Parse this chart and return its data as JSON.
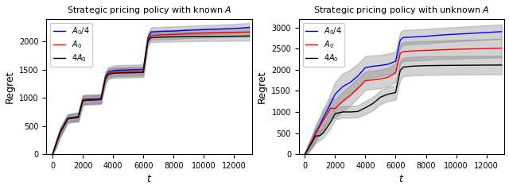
{
  "title_left": "Strategic pricing policy with known $A$",
  "title_right": "Strategic pricing policy with unknown $A$",
  "xlabel": "$t$",
  "ylabel": "Regret",
  "legend_labels": [
    "$A_0/4$",
    "$A_0$",
    "$4A_0$"
  ],
  "line_colors": [
    "blue",
    "red",
    "black"
  ],
  "shade_color": "gray",
  "shade_alpha": 0.35,
  "left": {
    "t": [
      0,
      200,
      500,
      700,
      1000,
      1200,
      1500,
      1700,
      2000,
      2200,
      2500,
      3000,
      3200,
      3500,
      3700,
      4000,
      4200,
      5000,
      5500,
      6000,
      6300,
      6500,
      7000,
      7200,
      8000,
      9000,
      10000,
      11000,
      12000,
      13000
    ],
    "blue_mean": [
      0,
      160,
      390,
      490,
      640,
      650,
      660,
      665,
      970,
      975,
      980,
      985,
      990,
      1380,
      1460,
      1480,
      1490,
      1495,
      1500,
      1505,
      2060,
      2170,
      2175,
      2180,
      2185,
      2200,
      2210,
      2220,
      2230,
      2250
    ],
    "blue_lo": [
      0,
      100,
      310,
      410,
      570,
      580,
      585,
      590,
      890,
      895,
      900,
      905,
      910,
      1290,
      1370,
      1390,
      1400,
      1405,
      1410,
      1415,
      1980,
      2090,
      2095,
      2100,
      2105,
      2120,
      2130,
      2140,
      2150,
      2170
    ],
    "blue_hi": [
      0,
      220,
      470,
      570,
      710,
      720,
      735,
      740,
      1050,
      1055,
      1060,
      1065,
      1070,
      1470,
      1550,
      1570,
      1580,
      1585,
      1590,
      1595,
      2140,
      2250,
      2255,
      2260,
      2265,
      2280,
      2290,
      2300,
      2310,
      2330
    ],
    "red_mean": [
      0,
      158,
      385,
      483,
      632,
      642,
      652,
      657,
      960,
      965,
      970,
      975,
      980,
      1360,
      1440,
      1455,
      1462,
      1467,
      1470,
      1475,
      2025,
      2110,
      2115,
      2120,
      2125,
      2140,
      2150,
      2158,
      2163,
      2168
    ],
    "red_lo": [
      0,
      98,
      305,
      403,
      562,
      572,
      577,
      582,
      880,
      885,
      890,
      895,
      900,
      1275,
      1355,
      1370,
      1377,
      1382,
      1385,
      1390,
      1942,
      2028,
      2033,
      2038,
      2043,
      2058,
      2068,
      2076,
      2081,
      2086
    ],
    "red_hi": [
      0,
      218,
      465,
      563,
      702,
      712,
      727,
      732,
      1040,
      1045,
      1050,
      1055,
      1060,
      1445,
      1525,
      1540,
      1547,
      1552,
      1555,
      1560,
      2108,
      2192,
      2197,
      2202,
      2207,
      2222,
      2232,
      2240,
      2245,
      2250
    ],
    "black_mean": [
      0,
      155,
      380,
      478,
      625,
      635,
      645,
      650,
      950,
      955,
      960,
      965,
      970,
      1340,
      1418,
      1434,
      1440,
      1444,
      1447,
      1452,
      2002,
      2070,
      2074,
      2078,
      2082,
      2086,
      2090,
      2092,
      2094,
      2098
    ],
    "black_lo": [
      0,
      95,
      300,
      398,
      555,
      565,
      570,
      575,
      870,
      875,
      880,
      885,
      890,
      1253,
      1333,
      1349,
      1355,
      1359,
      1362,
      1367,
      1920,
      1988,
      1992,
      1996,
      2000,
      2004,
      2008,
      2010,
      2012,
      2016
    ],
    "black_hi": [
      0,
      215,
      460,
      558,
      695,
      705,
      720,
      725,
      1030,
      1035,
      1040,
      1045,
      1050,
      1427,
      1503,
      1519,
      1525,
      1529,
      1532,
      1537,
      2084,
      2152,
      2156,
      2160,
      2164,
      2168,
      2172,
      2174,
      2176,
      2180
    ]
  },
  "right": {
    "t": [
      0,
      200,
      500,
      700,
      1000,
      1200,
      1500,
      1700,
      2000,
      2500,
      3000,
      3500,
      4000,
      4500,
      5000,
      5500,
      6000,
      6300,
      6500,
      7000,
      7200,
      8000,
      9000,
      10000,
      11000,
      12000,
      13000
    ],
    "blue_mean": [
      0,
      130,
      330,
      500,
      700,
      850,
      1050,
      1200,
      1420,
      1600,
      1700,
      1850,
      2050,
      2080,
      2100,
      2130,
      2200,
      2700,
      2760,
      2770,
      2775,
      2790,
      2820,
      2840,
      2860,
      2880,
      2900
    ],
    "blue_lo": [
      0,
      40,
      190,
      330,
      500,
      630,
      830,
      950,
      1130,
      1290,
      1400,
      1560,
      1780,
      1820,
      1850,
      1880,
      1970,
      2520,
      2580,
      2595,
      2600,
      2615,
      2650,
      2670,
      2690,
      2710,
      2730
    ],
    "blue_hi": [
      0,
      220,
      470,
      670,
      900,
      1070,
      1270,
      1450,
      1710,
      1910,
      2000,
      2140,
      2320,
      2340,
      2350,
      2380,
      2430,
      2880,
      2940,
      2945,
      2950,
      2965,
      2990,
      3010,
      3030,
      3050,
      3070
    ],
    "red_mean": [
      0,
      125,
      320,
      480,
      660,
      790,
      960,
      1090,
      1080,
      1250,
      1390,
      1560,
      1740,
      1760,
      1780,
      1820,
      1930,
      2380,
      2430,
      2440,
      2445,
      2455,
      2470,
      2483,
      2492,
      2500,
      2510
    ],
    "red_lo": [
      0,
      35,
      180,
      310,
      460,
      570,
      740,
      850,
      860,
      1020,
      1150,
      1330,
      1520,
      1545,
      1560,
      1600,
      1710,
      2150,
      2205,
      2215,
      2220,
      2230,
      2250,
      2263,
      2272,
      2280,
      2290
    ],
    "red_hi": [
      0,
      215,
      460,
      650,
      860,
      1010,
      1180,
      1330,
      1300,
      1480,
      1630,
      1790,
      1960,
      1975,
      2000,
      2040,
      2150,
      2610,
      2655,
      2665,
      2670,
      2680,
      2690,
      2703,
      2712,
      2720,
      2730
    ],
    "black_mean": [
      0,
      120,
      300,
      430,
      440,
      500,
      650,
      760,
      960,
      1000,
      1000,
      1010,
      1100,
      1200,
      1350,
      1420,
      1460,
      1980,
      2060,
      2080,
      2085,
      2095,
      2100,
      2103,
      2106,
      2108,
      2110
    ],
    "black_lo": [
      0,
      30,
      160,
      260,
      330,
      380,
      520,
      620,
      820,
      860,
      860,
      870,
      945,
      1040,
      1185,
      1255,
      1290,
      1760,
      1840,
      1860,
      1865,
      1875,
      1880,
      1883,
      1886,
      1888,
      1890
    ],
    "black_hi": [
      0,
      210,
      440,
      600,
      550,
      620,
      780,
      900,
      1100,
      1140,
      1140,
      1150,
      1255,
      1360,
      1515,
      1585,
      1630,
      2200,
      2280,
      2300,
      2305,
      2315,
      2320,
      2323,
      2326,
      2328,
      2330
    ]
  },
  "left_ylim": [
    0,
    2400
  ],
  "right_ylim": [
    0,
    3200
  ],
  "xlim": [
    -400,
    13200
  ],
  "xticks": [
    0,
    2000,
    4000,
    6000,
    8000,
    10000,
    12000
  ],
  "left_yticks": [
    0,
    500,
    1000,
    1500,
    2000
  ],
  "right_yticks": [
    0,
    500,
    1000,
    1500,
    2000,
    2500,
    3000
  ]
}
